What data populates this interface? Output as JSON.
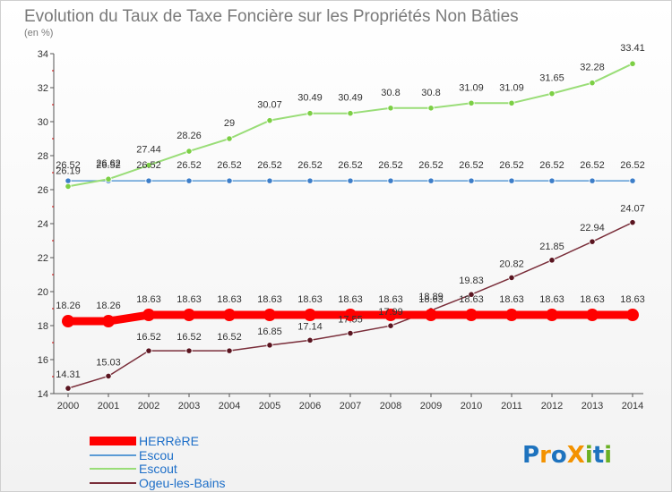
{
  "chart_data": {
    "type": "line",
    "title": "Evolution du Taux de Taxe Foncière sur les Propriétés Non Bâties",
    "unit_label": "(en %)",
    "xlabel": "",
    "ylabel": "",
    "x": [
      "2000",
      "2001",
      "2002",
      "2003",
      "2004",
      "2005",
      "2006",
      "2007",
      "2008",
      "2009",
      "2010",
      "2011",
      "2012",
      "2013",
      "2014"
    ],
    "ylim": [
      14,
      34
    ],
    "yticks": [
      14,
      16,
      18,
      20,
      22,
      24,
      26,
      28,
      30,
      32,
      34
    ],
    "grid": false,
    "legend_position": "bottom-left",
    "series": [
      {
        "name": "HERRèRE",
        "color": "#ff0000",
        "values": [
          18.26,
          18.26,
          18.63,
          18.63,
          18.63,
          18.63,
          18.63,
          18.63,
          18.63,
          18.63,
          18.63,
          18.63,
          18.63,
          18.63,
          18.63
        ],
        "labels": [
          "18.26",
          "18.26",
          "18.63",
          "18.63",
          "18.63",
          "18.63",
          "18.63",
          "18.63",
          "18.63",
          "18.63",
          "18.63",
          "18.63",
          "18.63",
          "18.63",
          "18.63"
        ]
      },
      {
        "name": "Escou",
        "color": "#5b9bd5",
        "values": [
          26.52,
          26.52,
          26.52,
          26.52,
          26.52,
          26.52,
          26.52,
          26.52,
          26.52,
          26.52,
          26.52,
          26.52,
          26.52,
          26.52,
          26.52
        ],
        "labels": [
          "26.52",
          "26.52",
          "26.52",
          "26.52",
          "26.52",
          "26.52",
          "26.52",
          "26.52",
          "26.52",
          "26.52",
          "26.52",
          "26.52",
          "26.52",
          "26.52",
          "26.52"
        ]
      },
      {
        "name": "Escout",
        "color": "#99dd77",
        "values": [
          26.19,
          26.62,
          27.44,
          28.26,
          29,
          30.07,
          30.49,
          30.49,
          30.8,
          30.8,
          31.09,
          31.09,
          31.65,
          32.28,
          33.41
        ],
        "labels": [
          "26.19",
          "26.62",
          "27.44",
          "28.26",
          "29",
          "30.07",
          "30.49",
          "30.49",
          "30.8",
          "30.8",
          "31.09",
          "31.09",
          "31.65",
          "32.28",
          "33.41"
        ]
      },
      {
        "name": "Ogeu-les-Bains",
        "color": "#7a2e3a",
        "values": [
          14.31,
          15.03,
          16.52,
          16.52,
          16.52,
          16.85,
          17.14,
          17.55,
          17.99,
          18.89,
          19.83,
          20.82,
          21.85,
          22.94,
          24.07
        ],
        "labels": [
          "14.31",
          "15.03",
          "16.52",
          "16.52",
          "16.52",
          "16.85",
          "17.14",
          "17.55",
          "17.99",
          "18.89",
          "19.83",
          "20.82",
          "21.85",
          "22.94",
          "24.07"
        ]
      }
    ]
  },
  "logo": {
    "text": "ProXiti",
    "letters": [
      "P",
      "r",
      "o",
      "X",
      "i",
      "t",
      "i"
    ],
    "colors": [
      "#1e73be",
      "#f39200",
      "#1e73be",
      "#f39200",
      "#6ab023",
      "#1e73be",
      "#6ab023"
    ]
  }
}
